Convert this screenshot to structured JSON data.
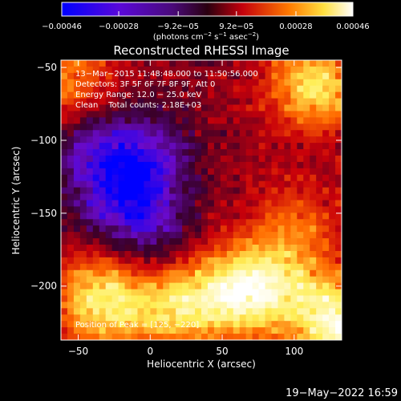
{
  "chart_data": {
    "type": "heatmap",
    "title": "Reconstructed RHESSI Image",
    "xlabel": "Heliocentric X (arcsec)",
    "ylabel": "Heliocentric Y (arcsec)",
    "xlim": [
      -62,
      133
    ],
    "ylim": [
      -237,
      -45
    ],
    "x_ticks": [
      -50,
      0,
      50,
      100
    ],
    "x_tick_labels": [
      "−50",
      "0",
      "50",
      "100"
    ],
    "y_ticks": [
      -50,
      -100,
      -150,
      -200
    ],
    "y_tick_labels": [
      "−50",
      "−100",
      "−150",
      "−200"
    ],
    "colorbar": {
      "range": [
        -0.00046,
        0.00046
      ],
      "ticks": [
        -0.00046,
        -0.00028,
        -9.2e-05,
        9.2e-05,
        0.00028,
        0.00046
      ],
      "tick_labels": [
        "−0.00046",
        "−0.00028",
        "−9.2e−05",
        "9.2e−05",
        "0.00028",
        "0.00046"
      ],
      "unit_text": "(photons cm",
      "unit_sup1": "−2",
      "unit_text2": " s",
      "unit_sup2": "−1",
      "unit_text3": " asec",
      "unit_sup3": "−2",
      "unit_text4": ")",
      "colors": [
        "#0000ff",
        "#6a0acc",
        "#3a002a",
        "#c8000a",
        "#ff6a00",
        "#ffee55",
        "#ffffff"
      ]
    },
    "annotations": [
      "13−Mar−2015 11:48:48.000 to 11:50:56.000",
      "Detectors: 3F 5F 6F 7F 8F 9F, Att 0",
      "Energy Range: 12.0 − 25.0 keV",
      "Clean    Total counts: 2.18E+03"
    ],
    "peak_label": "Position of Peak = [125, −220]",
    "peak": [
      125,
      -220
    ],
    "sources": [
      {
        "x": 115,
        "y": -62,
        "value": 0.00038
      },
      {
        "x": 130,
        "y": -225,
        "value": 0.00046
      },
      {
        "x": -35,
        "y": -210,
        "value": 0.0004
      },
      {
        "x": 15,
        "y": -215,
        "value": 0.00032
      },
      {
        "x": 55,
        "y": -205,
        "value": 0.00034
      },
      {
        "x": 85,
        "y": -200,
        "value": 0.0003
      },
      {
        "x": 100,
        "y": -160,
        "value": 0.00018
      },
      {
        "x": -55,
        "y": -60,
        "value": 0.00024
      },
      {
        "x": -20,
        "y": -140,
        "value": -0.00026
      },
      {
        "x": 0,
        "y": -110,
        "value": -0.00022
      },
      {
        "x": -40,
        "y": -105,
        "value": -0.0002
      },
      {
        "x": 5,
        "y": -165,
        "value": -0.00015
      }
    ]
  },
  "footer": {
    "timestamp": "19−May−2022 16:59"
  }
}
